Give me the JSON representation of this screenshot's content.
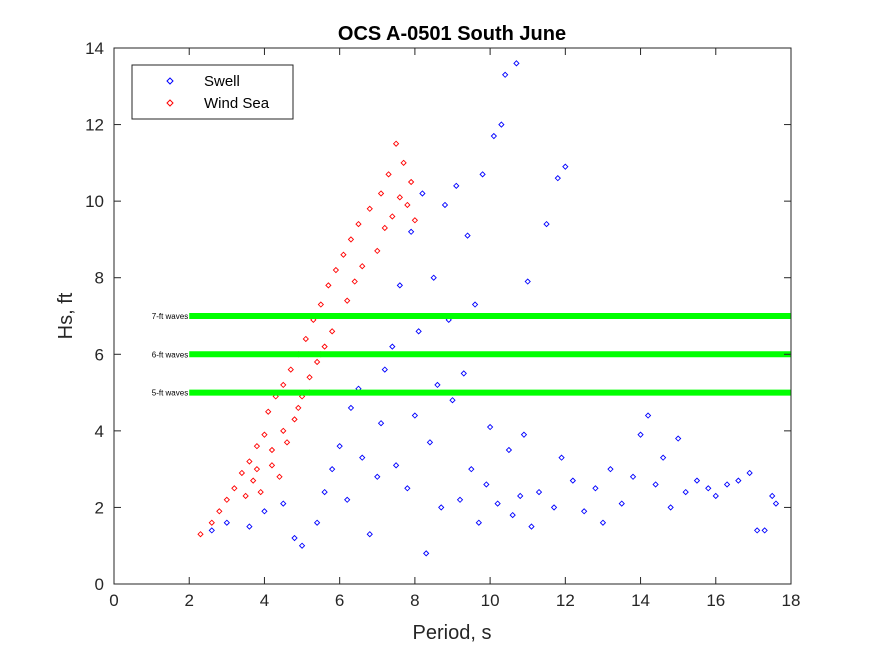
{
  "chart_data": {
    "type": "scatter",
    "title": "OCS A-0501 South June",
    "xlabel": "Period, s",
    "ylabel": "Hs, ft",
    "xlim": [
      0,
      18
    ],
    "ylim": [
      0,
      14
    ],
    "xticks": [
      0,
      2,
      4,
      6,
      8,
      10,
      12,
      14,
      16,
      18
    ],
    "yticks": [
      0,
      2,
      4,
      6,
      8,
      10,
      12,
      14
    ],
    "grid": false,
    "legend_position": "top-left",
    "marker": "diamond-open",
    "series": [
      {
        "name": "Swell",
        "color": "#0000ff",
        "sample_points": [
          [
            2.6,
            1.4
          ],
          [
            3.0,
            1.6
          ],
          [
            3.6,
            1.5
          ],
          [
            4.0,
            1.9
          ],
          [
            4.5,
            2.1
          ],
          [
            4.8,
            1.2
          ],
          [
            5.0,
            1.0
          ],
          [
            5.4,
            1.6
          ],
          [
            5.6,
            2.4
          ],
          [
            5.8,
            3.0
          ],
          [
            6.0,
            3.6
          ],
          [
            6.2,
            2.2
          ],
          [
            6.3,
            4.6
          ],
          [
            6.5,
            5.1
          ],
          [
            6.6,
            3.3
          ],
          [
            6.8,
            1.3
          ],
          [
            7.0,
            2.8
          ],
          [
            7.1,
            4.2
          ],
          [
            7.2,
            5.6
          ],
          [
            7.4,
            6.2
          ],
          [
            7.5,
            3.1
          ],
          [
            7.6,
            7.8
          ],
          [
            7.8,
            2.5
          ],
          [
            7.9,
            9.2
          ],
          [
            8.0,
            4.4
          ],
          [
            8.1,
            6.6
          ],
          [
            8.2,
            10.2
          ],
          [
            8.3,
            0.8
          ],
          [
            8.4,
            3.7
          ],
          [
            8.5,
            8.0
          ],
          [
            8.6,
            5.2
          ],
          [
            8.7,
            2.0
          ],
          [
            8.8,
            9.9
          ],
          [
            8.9,
            6.9
          ],
          [
            9.0,
            4.8
          ],
          [
            9.1,
            10.4
          ],
          [
            9.2,
            2.2
          ],
          [
            9.3,
            5.5
          ],
          [
            9.4,
            9.1
          ],
          [
            9.5,
            3.0
          ],
          [
            9.6,
            7.3
          ],
          [
            9.7,
            1.6
          ],
          [
            9.8,
            10.7
          ],
          [
            9.9,
            2.6
          ],
          [
            10.0,
            4.1
          ],
          [
            10.1,
            11.7
          ],
          [
            10.2,
            2.1
          ],
          [
            10.3,
            12.0
          ],
          [
            10.4,
            13.3
          ],
          [
            10.5,
            3.5
          ],
          [
            10.6,
            1.8
          ],
          [
            10.7,
            13.6
          ],
          [
            10.8,
            2.3
          ],
          [
            10.9,
            3.9
          ],
          [
            11.0,
            7.9
          ],
          [
            11.1,
            1.5
          ],
          [
            11.3,
            2.4
          ],
          [
            11.5,
            9.4
          ],
          [
            11.7,
            2.0
          ],
          [
            11.8,
            10.6
          ],
          [
            11.9,
            3.3
          ],
          [
            12.0,
            10.9
          ],
          [
            12.2,
            2.7
          ],
          [
            12.5,
            1.9
          ],
          [
            12.8,
            2.5
          ],
          [
            13.0,
            1.6
          ],
          [
            13.2,
            3.0
          ],
          [
            13.5,
            2.1
          ],
          [
            13.8,
            2.8
          ],
          [
            14.0,
            3.9
          ],
          [
            14.2,
            4.4
          ],
          [
            14.4,
            2.6
          ],
          [
            14.6,
            3.3
          ],
          [
            14.8,
            2.0
          ],
          [
            15.0,
            3.8
          ],
          [
            15.2,
            2.4
          ],
          [
            15.5,
            2.7
          ],
          [
            15.8,
            2.5
          ],
          [
            16.0,
            2.3
          ],
          [
            16.3,
            2.6
          ],
          [
            16.6,
            2.7
          ],
          [
            16.9,
            2.9
          ],
          [
            17.1,
            1.4
          ],
          [
            17.3,
            1.4
          ],
          [
            17.5,
            2.3
          ],
          [
            17.6,
            2.1
          ]
        ]
      },
      {
        "name": "Wind Sea",
        "color": "#ff0000",
        "sample_points": [
          [
            2.3,
            1.3
          ],
          [
            2.6,
            1.6
          ],
          [
            2.8,
            1.9
          ],
          [
            3.0,
            2.2
          ],
          [
            3.2,
            2.5
          ],
          [
            3.4,
            2.9
          ],
          [
            3.5,
            2.3
          ],
          [
            3.6,
            3.2
          ],
          [
            3.7,
            2.7
          ],
          [
            3.8,
            3.6
          ],
          [
            3.9,
            2.4
          ],
          [
            4.0,
            3.9
          ],
          [
            4.1,
            4.5
          ],
          [
            4.2,
            3.1
          ],
          [
            4.3,
            4.9
          ],
          [
            4.4,
            2.8
          ],
          [
            4.5,
            5.2
          ],
          [
            4.6,
            3.7
          ],
          [
            4.7,
            5.6
          ],
          [
            4.8,
            4.3
          ],
          [
            4.9,
            6.0
          ],
          [
            5.0,
            4.9
          ],
          [
            5.1,
            6.4
          ],
          [
            5.2,
            5.4
          ],
          [
            5.3,
            6.9
          ],
          [
            5.4,
            5.8
          ],
          [
            5.5,
            7.3
          ],
          [
            5.6,
            6.2
          ],
          [
            5.7,
            7.8
          ],
          [
            5.8,
            6.6
          ],
          [
            5.9,
            8.2
          ],
          [
            6.0,
            7.0
          ],
          [
            6.1,
            8.6
          ],
          [
            6.2,
            7.4
          ],
          [
            6.3,
            9.0
          ],
          [
            6.4,
            7.9
          ],
          [
            6.5,
            9.4
          ],
          [
            6.6,
            8.3
          ],
          [
            6.8,
            9.8
          ],
          [
            7.0,
            8.7
          ],
          [
            7.1,
            10.2
          ],
          [
            7.2,
            9.3
          ],
          [
            7.3,
            10.7
          ],
          [
            7.4,
            9.6
          ],
          [
            7.5,
            11.5
          ],
          [
            7.6,
            10.1
          ],
          [
            7.7,
            11.0
          ],
          [
            7.8,
            9.9
          ],
          [
            7.9,
            10.5
          ],
          [
            8.0,
            9.5
          ],
          [
            4.5,
            4.0
          ],
          [
            4.9,
            4.6
          ],
          [
            5.2,
            5.0
          ],
          [
            3.8,
            3.0
          ],
          [
            4.2,
            3.5
          ],
          [
            5.5,
            6.0
          ]
        ]
      }
    ],
    "reference_lines": [
      {
        "y": 7,
        "x_start": 2,
        "x_end": 18,
        "label": "7-ft waves",
        "color": "#00ff00"
      },
      {
        "y": 6,
        "x_start": 2,
        "x_end": 18,
        "label": "6-ft waves",
        "color": "#00ff00"
      },
      {
        "y": 5,
        "x_start": 2,
        "x_end": 18,
        "label": "5-ft waves",
        "color": "#00ff00"
      }
    ]
  }
}
